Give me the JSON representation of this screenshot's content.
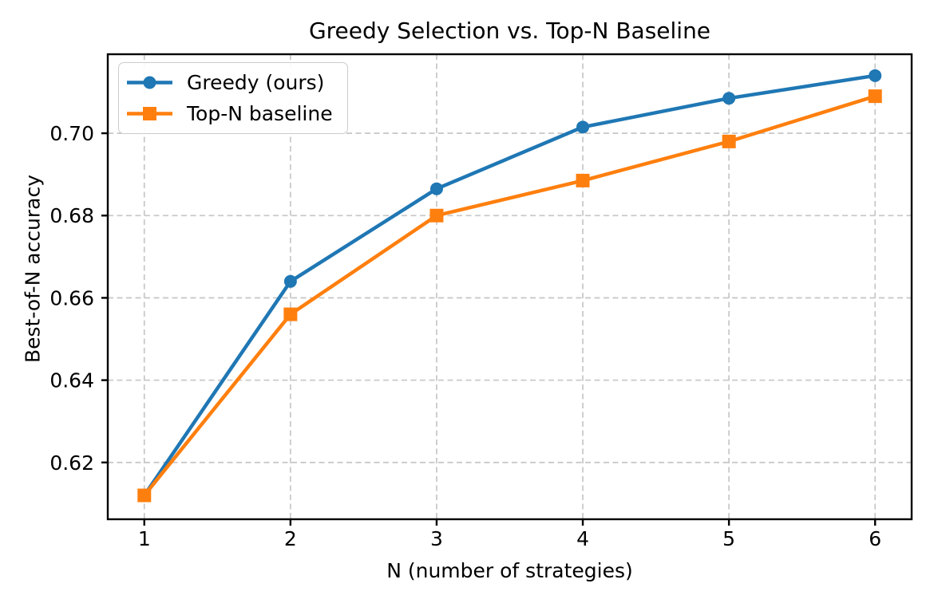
{
  "chart_data": {
    "type": "line",
    "title": "Greedy Selection vs. Top-N Baseline",
    "xlabel": "N (number of strategies)",
    "ylabel": "Best-of-N accuracy",
    "x": [
      1,
      2,
      3,
      4,
      5,
      6
    ],
    "series": [
      {
        "name": "Greedy (ours)",
        "color": "#1f77b4",
        "marker": "circle",
        "values": [
          0.612,
          0.664,
          0.6865,
          0.7015,
          0.7085,
          0.714
        ]
      },
      {
        "name": "Top-N baseline",
        "color": "#ff7f0e",
        "marker": "square",
        "values": [
          0.612,
          0.656,
          0.68,
          0.6885,
          0.698,
          0.709
        ]
      }
    ],
    "xlim": [
      0.75,
      6.25
    ],
    "ylim": [
      0.6062,
      0.7192
    ],
    "xticks": [
      1,
      2,
      3,
      4,
      5,
      6
    ],
    "xtick_labels": [
      "1",
      "2",
      "3",
      "4",
      "5",
      "6"
    ],
    "yticks": [
      0.62,
      0.64,
      0.66,
      0.68,
      0.7
    ],
    "ytick_labels": [
      "0.62",
      "0.64",
      "0.66",
      "0.68",
      "0.70"
    ],
    "grid": true,
    "grid_linestyle": "dashed",
    "grid_color": "#c9c9c9",
    "axis_color": "#000000",
    "background_color": "#ffffff",
    "legend_position": "upper left"
  }
}
